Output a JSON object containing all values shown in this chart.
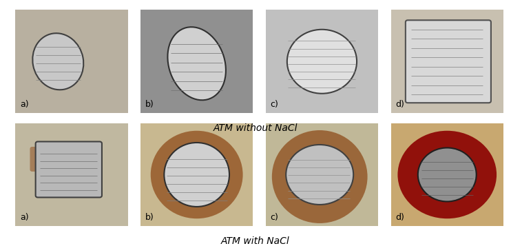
{
  "figsize": [
    7.42,
    3.57
  ],
  "dpi": 100,
  "background_color": "#ffffff",
  "row_labels": [
    "ATM without NaCl",
    "ATM with NaCl"
  ],
  "label_color": "#000000",
  "label_fontsize": 9,
  "caption_fontsize": 10,
  "top_images": [
    {
      "label": "a)",
      "bg_concrete": "#b8b0a0",
      "steel_color": "#c8c8c8",
      "rust_color": null,
      "shape": "irregular_small"
    },
    {
      "label": "b)",
      "bg_concrete": "#909090",
      "steel_color": "#d0d0d0",
      "rust_color": null,
      "shape": "tall_oval"
    },
    {
      "label": "c)",
      "bg_concrete": "#c0c0c0",
      "steel_color": "#e0e0e0",
      "rust_color": null,
      "shape": "wide_oval"
    },
    {
      "label": "d)",
      "bg_concrete": "#c8c0b0",
      "steel_color": "#d8d8d8",
      "rust_color": null,
      "shape": "wide_rect"
    }
  ],
  "bottom_images": [
    {
      "label": "a)",
      "bg_concrete": "#c0b8a0",
      "steel_color": "#b8b8b8",
      "rust_color": "#8B4513",
      "shape": "rect_small"
    },
    {
      "label": "b)",
      "bg_concrete": "#c8b890",
      "steel_color": "#d0d0d0",
      "rust_color": "#8B4513",
      "shape": "oval_rust"
    },
    {
      "label": "c)",
      "bg_concrete": "#c0b898",
      "steel_color": "#c0c0c0",
      "rust_color": "#8B4513",
      "shape": "irregular_rust"
    },
    {
      "label": "d)",
      "bg_concrete": "#c8a870",
      "steel_color": "#909090",
      "rust_color": "#8B0000",
      "shape": "oval_dark_rust"
    }
  ]
}
